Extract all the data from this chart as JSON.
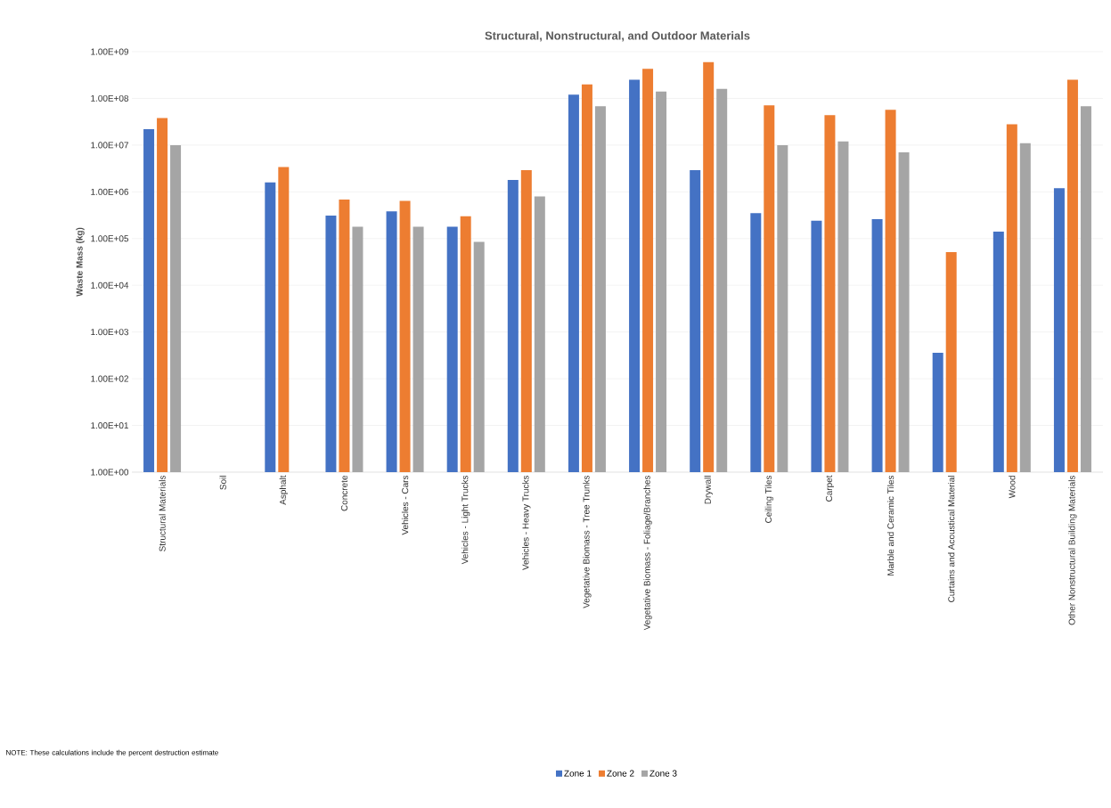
{
  "chart_data": {
    "type": "bar",
    "title": "Structural, Nonstructural, and Outdoor Materials",
    "ylabel": "Waste Mass (kg)",
    "categories": [
      "Structural Materials",
      "Soil",
      "Asphalt",
      "Concrete",
      "Vehicles - Cars",
      "Vehicles - Light Trucks",
      "Vehicles - Heavy Trucks",
      "Vegetative Biomass - Tree Trunks",
      "Vegetative Biomass - Foliage/Branches",
      "Drywall",
      "Ceiling Tiles",
      "Carpet",
      "Marble and Ceramic Tiles",
      "Curtains and Acoustical Material",
      "Wood",
      "Other Nonstructural Building Materials"
    ],
    "series": [
      {
        "name": "Zone 1",
        "color": "#4472c4",
        "values": [
          22000000,
          null,
          1600000,
          310000,
          380000,
          180000,
          1800000,
          120000000,
          250000000,
          2900000,
          350000,
          240000,
          260000,
          360,
          140000,
          1200000
        ]
      },
      {
        "name": "Zone 2",
        "color": "#ed7d31",
        "values": [
          38000000,
          null,
          3400000,
          680000,
          640000,
          300000,
          2900000,
          200000000,
          430000000,
          600000000,
          71000000,
          44000000,
          57000000,
          51000,
          28000000,
          250000000
        ]
      },
      {
        "name": "Zone 3",
        "color": "#a5a5a5",
        "values": [
          10000000,
          null,
          null,
          180000,
          180000,
          85000,
          800000,
          68000000,
          140000000,
          160000000,
          10000000,
          12000000,
          7000000,
          null,
          11000000,
          68000000
        ]
      }
    ],
    "log": "y",
    "ylim": [
      1,
      1000000000
    ],
    "yticks": [
      {
        "value": 1,
        "label": "1.00E+00"
      },
      {
        "value": 10,
        "label": "1.00E+01"
      },
      {
        "value": 100,
        "label": "1.00E+02"
      },
      {
        "value": 1000,
        "label": "1.00E+03"
      },
      {
        "value": 10000,
        "label": "1.00E+04"
      },
      {
        "value": 100000,
        "label": "1.00E+05"
      },
      {
        "value": 1000000,
        "label": "1.00E+06"
      },
      {
        "value": 10000000,
        "label": "1.00E+07"
      },
      {
        "value": 100000000,
        "label": "1.00E+08"
      },
      {
        "value": 1000000000,
        "label": "1.00E+09"
      }
    ],
    "grid": "y",
    "legend": "bottom",
    "annotations": [
      "NOTE: These calculations include the percent destruction estimate"
    ]
  }
}
